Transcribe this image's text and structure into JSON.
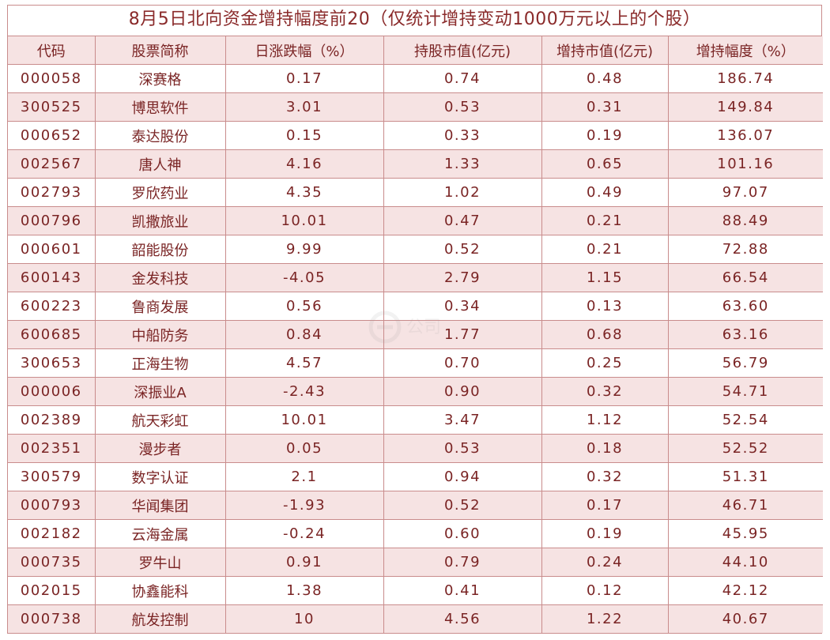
{
  "title": "8月5日北向资金增持幅度前20（仅统计增持变动1000万元以上的个股）",
  "columns": [
    "代码",
    "股票简称",
    "日涨跌幅（%）",
    "持股市值(亿元)",
    "增持市值(亿元)",
    "增持幅度（%）"
  ],
  "rows": [
    [
      "000058",
      "深赛格",
      "0.17",
      "0.74",
      "0.48",
      "186.74"
    ],
    [
      "300525",
      "博思软件",
      "3.01",
      "0.53",
      "0.31",
      "149.84"
    ],
    [
      "000652",
      "泰达股份",
      "0.15",
      "0.33",
      "0.19",
      "136.07"
    ],
    [
      "002567",
      "唐人神",
      "4.16",
      "1.33",
      "0.65",
      "101.16"
    ],
    [
      "002793",
      "罗欣药业",
      "4.35",
      "1.02",
      "0.49",
      "97.07"
    ],
    [
      "000796",
      "凯撒旅业",
      "10.01",
      "0.47",
      "0.21",
      "88.49"
    ],
    [
      "000601",
      "韶能股份",
      "9.99",
      "0.52",
      "0.21",
      "72.88"
    ],
    [
      "600143",
      "金发科技",
      "-4.05",
      "2.79",
      "1.15",
      "66.54"
    ],
    [
      "600223",
      "鲁商发展",
      "0.56",
      "0.34",
      "0.13",
      "63.60"
    ],
    [
      "600685",
      "中船防务",
      "0.84",
      "1.77",
      "0.68",
      "63.16"
    ],
    [
      "300653",
      "正海生物",
      "4.57",
      "0.70",
      "0.25",
      "56.79"
    ],
    [
      "000006",
      "深振业A",
      "-2.43",
      "0.90",
      "0.32",
      "54.71"
    ],
    [
      "002389",
      "航天彩虹",
      "10.01",
      "3.47",
      "1.12",
      "52.54"
    ],
    [
      "002351",
      "漫步者",
      "0.05",
      "0.53",
      "0.18",
      "52.52"
    ],
    [
      "300579",
      "数字认证",
      "2.1",
      "0.94",
      "0.32",
      "51.31"
    ],
    [
      "000793",
      "华闻集团",
      "-1.93",
      "0.52",
      "0.17",
      "46.71"
    ],
    [
      "002182",
      "云海金属",
      "-0.24",
      "0.60",
      "0.19",
      "45.95"
    ],
    [
      "000735",
      "罗牛山",
      "0.91",
      "0.79",
      "0.24",
      "44.10"
    ],
    [
      "002015",
      "协鑫能科",
      "1.38",
      "0.41",
      "0.12",
      "42.12"
    ],
    [
      "000738",
      "航发控制",
      "10",
      "4.56",
      "1.22",
      "40.67"
    ]
  ],
  "colors": {
    "text": "#7a2424",
    "border": "#c98c8c",
    "stripe": "#f6e3e3"
  },
  "watermark": {
    "icon": "logo-icon",
    "text": "公司"
  }
}
